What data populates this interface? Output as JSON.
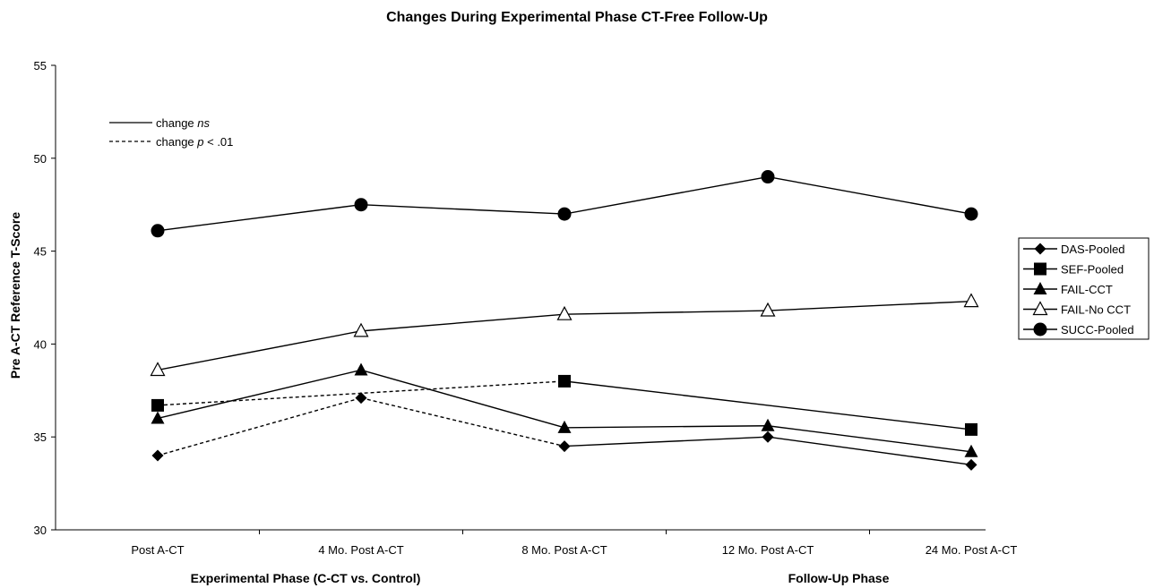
{
  "chart_data": {
    "type": "line",
    "title": "Changes During Experimental Phase CT-Free Follow-Up",
    "ylabel": "Pre A-CT Reference T-Score",
    "xlabel_left": "Experimental Phase (C-CT vs. Control)",
    "xlabel_right": "Follow-Up Phase",
    "categories": [
      "Post A-CT",
      "4 Mo. Post A-CT",
      "8 Mo. Post A-CT",
      "12 Mo. Post A-CT",
      "24 Mo. Post A-CT"
    ],
    "ylim": [
      30,
      55
    ],
    "yticks": [
      30,
      35,
      40,
      45,
      50,
      55
    ],
    "legend_position": "right",
    "annotation": {
      "solid_label": "change ",
      "solid_italic": "ns",
      "dashed_label": "change ",
      "dashed_italic": "p",
      "dashed_suffix": " < .01"
    },
    "series": [
      {
        "name": "DAS-Pooled",
        "marker": "diamond",
        "values": [
          34.0,
          37.1,
          34.5,
          35.0,
          33.5
        ],
        "dashed_segments": [
          0,
          1
        ]
      },
      {
        "name": "SEF-Pooled",
        "marker": "square",
        "values": [
          36.7,
          null,
          38.0,
          null,
          35.4
        ],
        "dashed_segments": [
          0
        ]
      },
      {
        "name": "FAIL-CCT",
        "marker": "triangle",
        "values": [
          36.0,
          38.6,
          35.5,
          35.6,
          34.2
        ],
        "dashed_segments": []
      },
      {
        "name": "FAIL-No CCT",
        "marker": "triangle-open",
        "values": [
          38.6,
          40.7,
          41.6,
          41.8,
          42.3
        ],
        "dashed_segments": []
      },
      {
        "name": "SUCC-Pooled",
        "marker": "circle",
        "values": [
          46.1,
          47.5,
          47.0,
          49.0,
          47.0
        ],
        "dashed_segments": []
      }
    ]
  }
}
